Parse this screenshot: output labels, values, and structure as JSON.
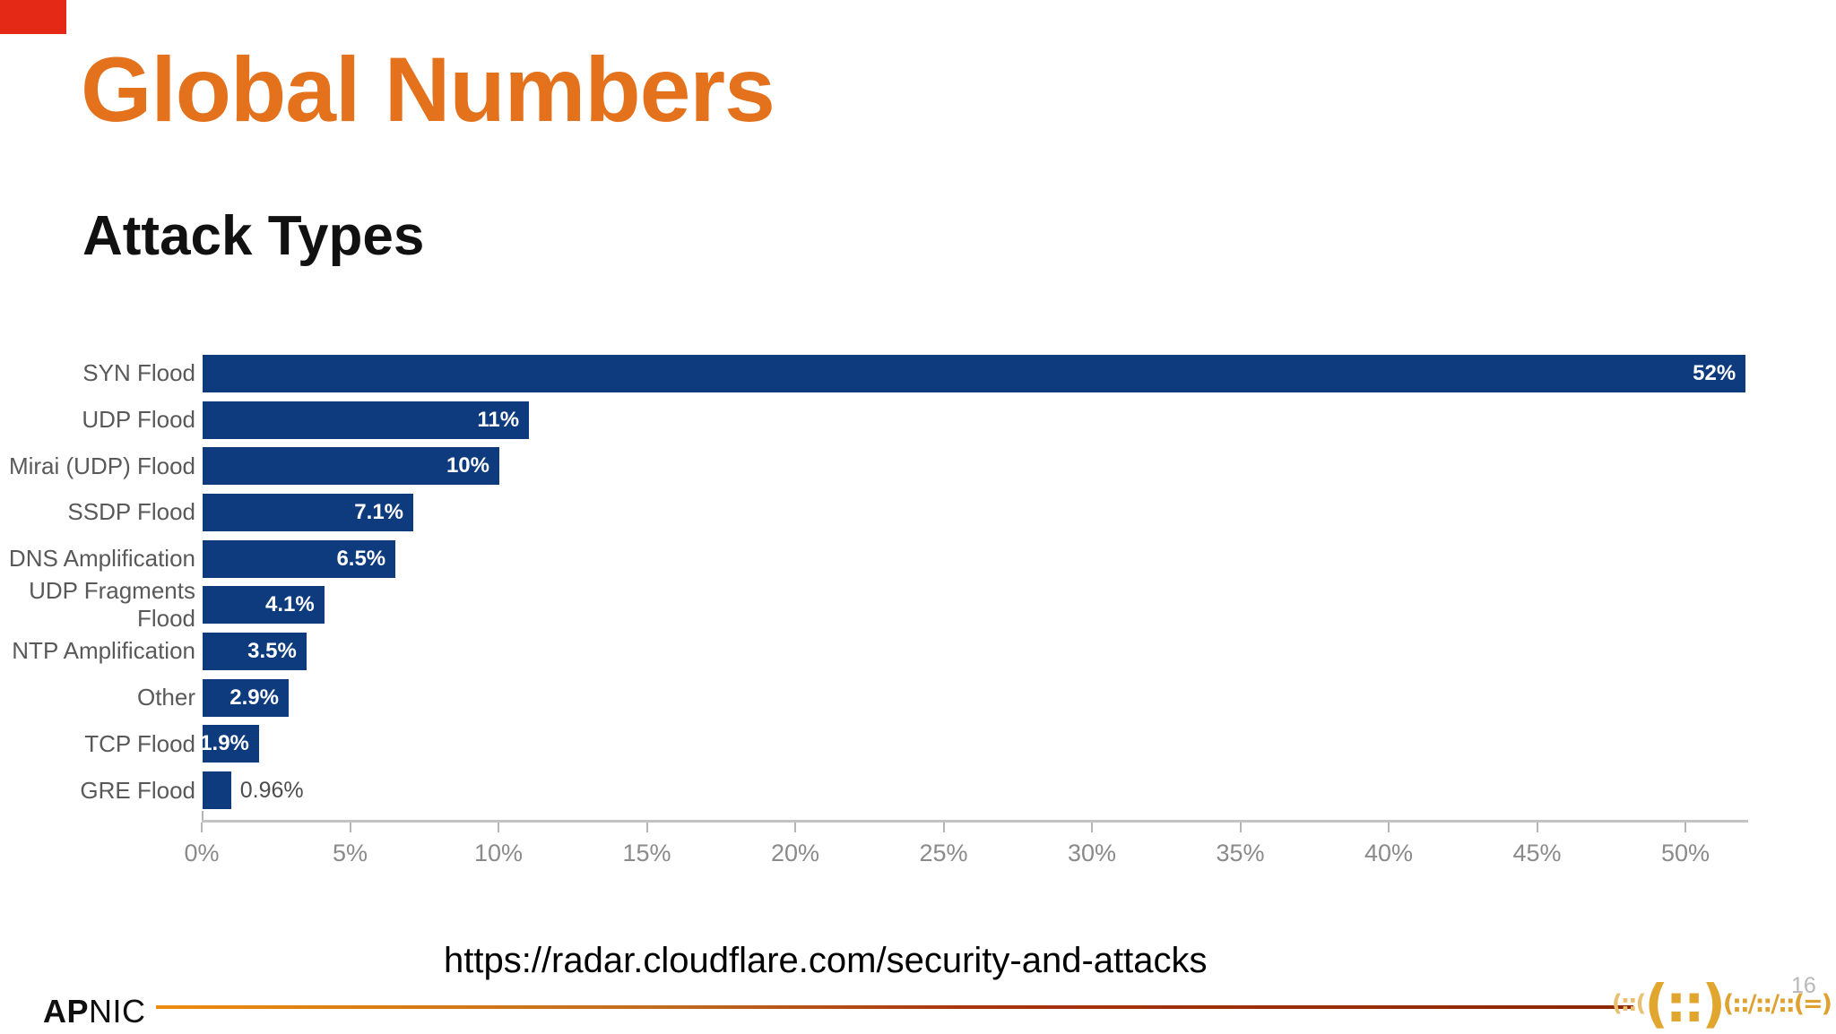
{
  "slide": {
    "title": "Global Numbers",
    "subtitle": "Attack Types",
    "title_color": "#e4711c",
    "corner_accent_color": "#e42917",
    "source_url": "https://radar.cloudflare.com/security-and-attacks",
    "footer": {
      "logo_bold": "AP",
      "logo_rest": "NIC",
      "conference_logo": {
        "left": "(::(",
        "center": "(::)",
        "right": "(::/::/::(=)"
      },
      "page_number": "16"
    }
  },
  "chart_data": {
    "type": "bar",
    "orientation": "horizontal",
    "title": "Attack Types",
    "categories": [
      "SYN Flood",
      "UDP Flood",
      "Mirai (UDP) Flood",
      "SSDP Flood",
      "DNS Amplification",
      "UDP Fragments Flood",
      "NTP Amplification",
      "Other",
      "TCP Flood",
      "GRE Flood"
    ],
    "values": [
      52,
      11,
      10,
      7.1,
      6.5,
      4.1,
      3.5,
      2.9,
      1.9,
      0.96
    ],
    "value_labels": [
      "52%",
      "11%",
      "10%",
      "7.1%",
      "6.5%",
      "4.1%",
      "3.5%",
      "2.9%",
      "1.9%",
      "0.96%"
    ],
    "bar_color": "#0e3a7e",
    "xlabel": "",
    "ylabel": "",
    "xlim": [
      0,
      52.1
    ],
    "x_tick_step": 5,
    "x_tick_labels": [
      "0%",
      "5%",
      "10%",
      "15%",
      "20%",
      "25%",
      "30%",
      "35%",
      "40%",
      "45%",
      "50%"
    ],
    "grid": false,
    "legend_position": "none",
    "value_label_inside_color": "#ffffff",
    "value_label_outside_color": "#4d4d4d"
  }
}
